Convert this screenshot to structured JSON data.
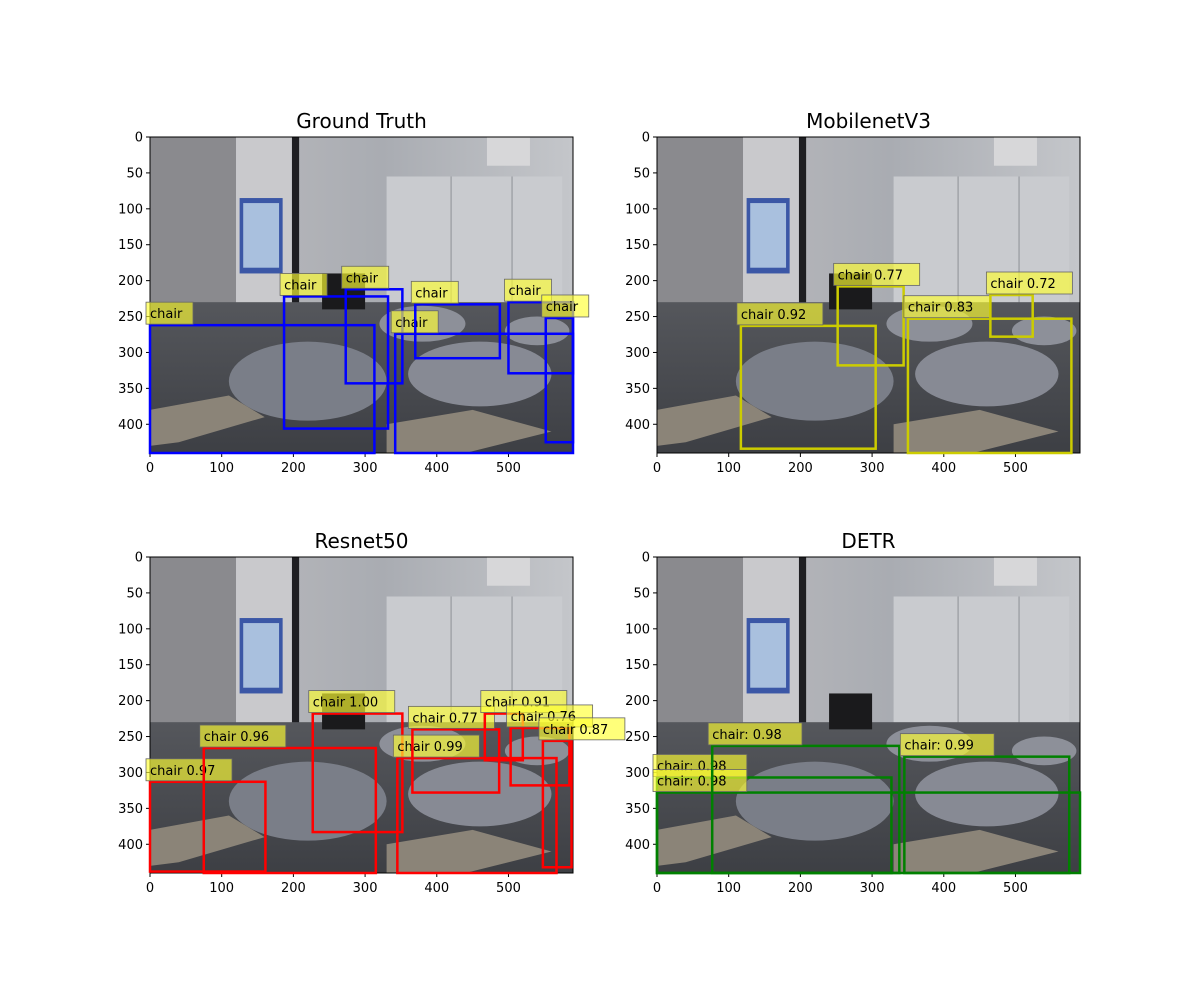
{
  "chart_data": [
    {
      "type": "detection",
      "title": "Ground Truth",
      "box_color": "#0000ff",
      "xlim": [
        0,
        590
      ],
      "ylim": [
        440,
        0
      ],
      "xticks": [
        0,
        100,
        200,
        300,
        400,
        500
      ],
      "yticks": [
        0,
        50,
        100,
        150,
        200,
        250,
        300,
        350,
        400
      ],
      "boxes": [
        {
          "label": "chart_label_chair",
          "text": "chair",
          "x1": 0,
          "y1": 262,
          "x2": 313,
          "y2": 440
        },
        {
          "label": "chart_label_chair",
          "text": "chair",
          "x1": 187,
          "y1": 222,
          "x2": 332,
          "y2": 406
        },
        {
          "label": "chart_label_chair",
          "text": "chair",
          "x1": 273,
          "y1": 212,
          "x2": 352,
          "y2": 343
        },
        {
          "label": "chart_label_chair",
          "text": "chair",
          "x1": 342,
          "y1": 274,
          "x2": 590,
          "y2": 440
        },
        {
          "label": "chart_label_chair",
          "text": "chair",
          "x1": 370,
          "y1": 233,
          "x2": 488,
          "y2": 308
        },
        {
          "label": "chart_label_chair",
          "text": "chair",
          "x1": 500,
          "y1": 230,
          "x2": 590,
          "y2": 329
        },
        {
          "label": "chart_label_chair",
          "text": "chair",
          "x1": 552,
          "y1": 252,
          "x2": 590,
          "y2": 425
        }
      ]
    },
    {
      "type": "detection",
      "title": "MobilenetV3",
      "box_color": "#cccc00",
      "xlim": [
        0,
        590
      ],
      "ylim": [
        440,
        0
      ],
      "xticks": [
        0,
        100,
        200,
        300,
        400,
        500
      ],
      "yticks": [
        0,
        50,
        100,
        150,
        200,
        250,
        300,
        350,
        400
      ],
      "boxes": [
        {
          "text": "chair 0.92",
          "x1": 117,
          "y1": 263,
          "x2": 305,
          "y2": 434
        },
        {
          "text": "chair 0.77",
          "x1": 252,
          "y1": 208,
          "x2": 344,
          "y2": 318
        },
        {
          "text": "chair 0.83",
          "x1": 350,
          "y1": 253,
          "x2": 578,
          "y2": 440
        },
        {
          "text": "chair 0.72",
          "x1": 465,
          "y1": 220,
          "x2": 524,
          "y2": 278
        }
      ]
    },
    {
      "type": "detection",
      "title": "Resnet50",
      "box_color": "#ff0000",
      "xlim": [
        0,
        590
      ],
      "ylim": [
        440,
        0
      ],
      "xticks": [
        0,
        100,
        200,
        300,
        400,
        500
      ],
      "yticks": [
        0,
        50,
        100,
        150,
        200,
        250,
        300,
        350,
        400
      ],
      "boxes": [
        {
          "text": "chair 0.97",
          "x1": 0,
          "y1": 313,
          "x2": 161,
          "y2": 438
        },
        {
          "text": "chair 0.96",
          "x1": 75,
          "y1": 266,
          "x2": 315,
          "y2": 440
        },
        {
          "text": "chair 1.00",
          "x1": 227,
          "y1": 218,
          "x2": 352,
          "y2": 383
        },
        {
          "text": "chair 0.99",
          "x1": 345,
          "y1": 280,
          "x2": 567,
          "y2": 440
        },
        {
          "text": "chair 0.77",
          "x1": 366,
          "y1": 240,
          "x2": 487,
          "y2": 328
        },
        {
          "text": "chair 0.91",
          "x1": 467,
          "y1": 218,
          "x2": 520,
          "y2": 283
        },
        {
          "text": "chair 0.76",
          "x1": 503,
          "y1": 238,
          "x2": 585,
          "y2": 318
        },
        {
          "text": "chair 0.87",
          "x1": 548,
          "y1": 256,
          "x2": 588,
          "y2": 432
        }
      ]
    },
    {
      "type": "detection",
      "title": "DETR",
      "box_color": "#008000",
      "xlim": [
        0,
        590
      ],
      "ylim": [
        440,
        0
      ],
      "xticks": [
        0,
        100,
        200,
        300,
        400,
        500
      ],
      "yticks": [
        0,
        50,
        100,
        150,
        200,
        250,
        300,
        350,
        400
      ],
      "boxes": [
        {
          "text": "chair: 0.98",
          "x1": 0,
          "y1": 307,
          "x2": 327,
          "y2": 440
        },
        {
          "text": "chair: 0.98",
          "x1": 0,
          "y1": 328,
          "x2": 590,
          "y2": 440
        },
        {
          "text": "chair: 0.98",
          "x1": 77,
          "y1": 263,
          "x2": 338,
          "y2": 440
        },
        {
          "text": "chair: 0.99",
          "x1": 345,
          "y1": 278,
          "x2": 575,
          "y2": 440
        }
      ]
    }
  ]
}
